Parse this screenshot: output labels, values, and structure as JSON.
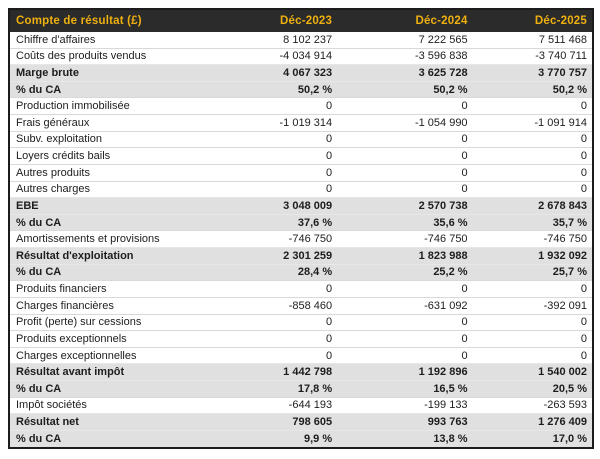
{
  "chart_data": {
    "type": "table",
    "title": "Compte de résultat (£)",
    "columns": [
      "Déc-2023",
      "Déc-2024",
      "Déc-2025"
    ],
    "rows": [
      {
        "label": "Chiffre d'affaires",
        "values": [
          "8 102 237",
          "7 222 565",
          "7 511 468"
        ],
        "emphasis": false
      },
      {
        "label": "Coûts des produits vendus",
        "values": [
          "-4 034 914",
          "-3 596 838",
          "-3 740 711"
        ],
        "emphasis": false
      },
      {
        "label": "Marge brute",
        "values": [
          "4 067 323",
          "3 625 728",
          "3 770 757"
        ],
        "emphasis": true
      },
      {
        "label": "% du CA",
        "values": [
          "50,2 %",
          "50,2 %",
          "50,2 %"
        ],
        "emphasis": true
      },
      {
        "label": "Production immobilisée",
        "values": [
          "0",
          "0",
          "0"
        ],
        "emphasis": false
      },
      {
        "label": "Frais généraux",
        "values": [
          "-1 019 314",
          "-1 054 990",
          "-1 091 914"
        ],
        "emphasis": false
      },
      {
        "label": "Subv. exploitation",
        "values": [
          "0",
          "0",
          "0"
        ],
        "emphasis": false
      },
      {
        "label": "Loyers crédits bails",
        "values": [
          "0",
          "0",
          "0"
        ],
        "emphasis": false
      },
      {
        "label": "Autres produits",
        "values": [
          "0",
          "0",
          "0"
        ],
        "emphasis": false
      },
      {
        "label": "Autres charges",
        "values": [
          "0",
          "0",
          "0"
        ],
        "emphasis": false
      },
      {
        "label": "EBE",
        "values": [
          "3 048 009",
          "2 570 738",
          "2 678 843"
        ],
        "emphasis": true
      },
      {
        "label": "% du CA",
        "values": [
          "37,6 %",
          "35,6 %",
          "35,7 %"
        ],
        "emphasis": true
      },
      {
        "label": "Amortissements et provisions",
        "values": [
          "-746 750",
          "-746 750",
          "-746 750"
        ],
        "emphasis": false
      },
      {
        "label": "Résultat d'exploitation",
        "values": [
          "2 301 259",
          "1 823 988",
          "1 932 092"
        ],
        "emphasis": true
      },
      {
        "label": "% du CA",
        "values": [
          "28,4 %",
          "25,2 %",
          "25,7 %"
        ],
        "emphasis": true
      },
      {
        "label": "Produits financiers",
        "values": [
          "0",
          "0",
          "0"
        ],
        "emphasis": false
      },
      {
        "label": "Charges financières",
        "values": [
          "-858 460",
          "-631 092",
          "-392 091"
        ],
        "emphasis": false
      },
      {
        "label": "Profit (perte) sur cessions",
        "values": [
          "0",
          "0",
          "0"
        ],
        "emphasis": false
      },
      {
        "label": "Produits exceptionnels",
        "values": [
          "0",
          "0",
          "0"
        ],
        "emphasis": false
      },
      {
        "label": "Charges exceptionnelles",
        "values": [
          "0",
          "0",
          "0"
        ],
        "emphasis": false
      },
      {
        "label": "Résultat avant impôt",
        "values": [
          "1 442 798",
          "1 192 896",
          "1 540 002"
        ],
        "emphasis": true
      },
      {
        "label": "% du CA",
        "values": [
          "17,8 %",
          "16,5 %",
          "20,5 %"
        ],
        "emphasis": true
      },
      {
        "label": "Impôt sociétés",
        "values": [
          "-644 193",
          "-199 133",
          "-263 593"
        ],
        "emphasis": false
      },
      {
        "label": "Résultat net",
        "values": [
          "798 605",
          "993 763",
          "1 276 409"
        ],
        "emphasis": true
      },
      {
        "label": "% du CA",
        "values": [
          "9,9 %",
          "13,8 %",
          "17,0 %"
        ],
        "emphasis": true
      }
    ],
    "colors": {
      "header_bg": "#2b2b2b",
      "header_text": "#eeb00f",
      "emphasis_row_bg": "#e0e0e0",
      "row_separator": "#d9d9d9",
      "frame_border": "#1c1c1c",
      "text": "#1d1d1d"
    }
  }
}
